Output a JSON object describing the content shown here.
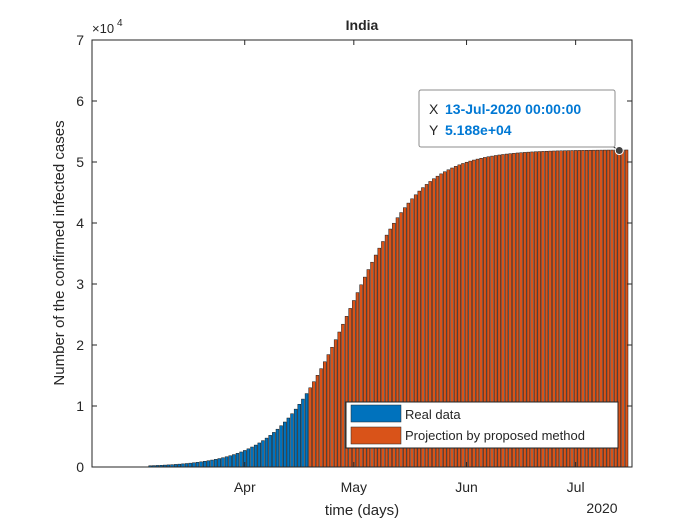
{
  "chart_data": {
    "type": "bar",
    "title": "India",
    "xlabel": "time (days)",
    "ylabel": "Number of the confirmed infected cases",
    "ylim": [
      0,
      70000
    ],
    "yticks": [
      0,
      10000,
      20000,
      30000,
      40000,
      50000,
      60000,
      70000
    ],
    "ytick_labels": [
      "0",
      "1",
      "2",
      "3",
      "4",
      "5",
      "6",
      "7"
    ],
    "y_exponent_base": "×10",
    "y_exponent_power": "4",
    "x_start_date": "2020-03-06",
    "x_end_date": "2020-07-16",
    "xticks": [
      {
        "label": "Apr",
        "date": "2020-04-01"
      },
      {
        "label": "May",
        "date": "2020-05-01"
      },
      {
        "label": "Jun",
        "date": "2020-06-01"
      },
      {
        "label": "Jul",
        "date": "2020-07-01"
      }
    ],
    "x_year_label": "2020",
    "series": [
      {
        "name": "Real data",
        "color": "#0072BD",
        "start_date": "2020-03-06",
        "end_date": "2020-04-18",
        "logistic": {
          "K": 52000,
          "t0": "2020-04-30",
          "scale": 10.0
        }
      },
      {
        "name": "Projection by proposed method",
        "color": "#D95319",
        "start_date": "2020-04-19",
        "end_date": "2020-07-15",
        "logistic": {
          "K": 52000,
          "t0": "2020-04-30",
          "scale": 10.0
        }
      }
    ],
    "datatip": {
      "x_label": "X",
      "x_value": "13-Jul-2020 00:00:00",
      "y_label": "Y",
      "y_value": "5.188e+04",
      "x_date": "2020-07-13",
      "y": 51880,
      "value_color": "#0078D4"
    },
    "legend": {
      "location": "bottom-right",
      "entries": [
        "Real data",
        "Projection by proposed method"
      ]
    },
    "grid": false
  }
}
